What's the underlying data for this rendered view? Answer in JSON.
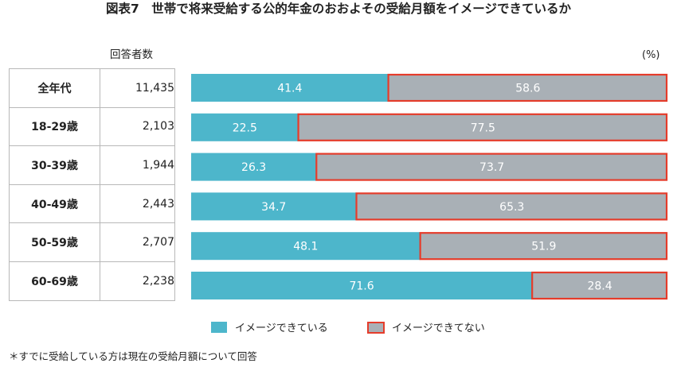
{
  "title": "図表7　世帯で将来受給する公的年金のおおよその受給月額をイメージできているか",
  "respondents_header": "回答者数",
  "unit": "(%)",
  "footnote": "＊すでに受給している方は現在の受給月額について回答",
  "colors": {
    "can_imagine": "#4db6cb",
    "cannot_imagine": "#a9b0b6",
    "highlight_border": "#e53c2b"
  },
  "rows": [
    {
      "label": "全年代",
      "count": "11,435"
    },
    {
      "label": "18-29歳",
      "count": "2,103"
    },
    {
      "label": "30-39歳",
      "count": "1,944"
    },
    {
      "label": "40-49歳",
      "count": "2,443"
    },
    {
      "label": "50-59歳",
      "count": "2,707"
    },
    {
      "label": "60-69歳",
      "count": "2,238"
    }
  ],
  "chart_data": {
    "type": "bar",
    "orientation": "horizontal",
    "stacked": true,
    "categories": [
      "全年代",
      "18-29歳",
      "30-39歳",
      "40-49歳",
      "50-59歳",
      "60-69歳"
    ],
    "series": [
      {
        "name": "イメージできている",
        "values": [
          41.4,
          22.5,
          26.3,
          34.7,
          48.1,
          71.6
        ]
      },
      {
        "name": "イメージできてない",
        "values": [
          58.6,
          77.5,
          73.7,
          65.3,
          51.9,
          28.4
        ]
      }
    ],
    "xlim": [
      0,
      100
    ],
    "legend": "bottom",
    "grid": false
  }
}
